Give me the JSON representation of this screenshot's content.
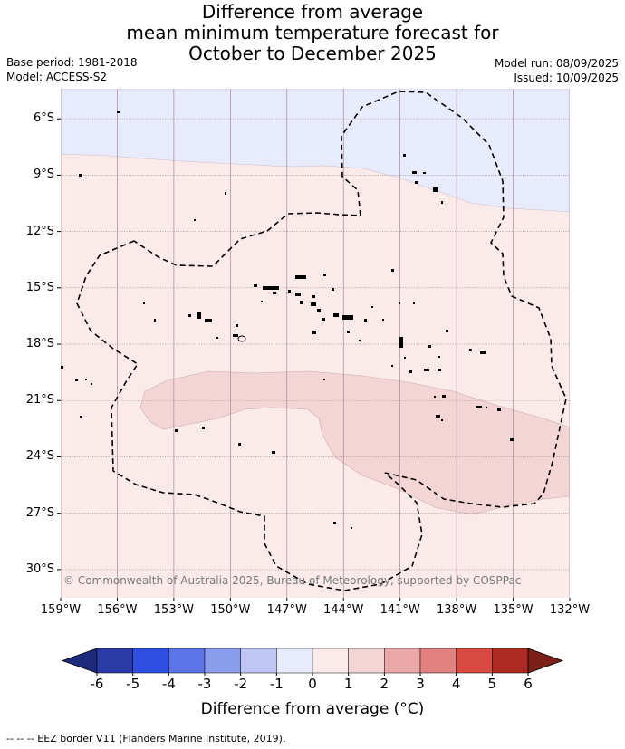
{
  "title": {
    "line1": "Difference from average",
    "line2": "mean minimum temperature forecast for",
    "line3": "October to December 2025"
  },
  "meta": {
    "base_period": "Base period: 1981-2018",
    "model": "Model: ACCESS-S2",
    "model_run": "Model run: 08/09/2025",
    "issued": "Issued: 10/09/2025"
  },
  "map": {
    "latitude_labels": [
      "6°S",
      "9°S",
      "12°S",
      "15°S",
      "18°S",
      "21°S",
      "24°S",
      "27°S",
      "30°S"
    ],
    "longitude_labels": [
      "159°W",
      "156°W",
      "153°W",
      "150°W",
      "147°W",
      "144°W",
      "141°W",
      "138°W",
      "135°W",
      "132°W"
    ],
    "extent": {
      "lon_west": -159,
      "lon_east": -132,
      "lat_north": -4.4,
      "lat_south": -31.5
    },
    "copyright": "© Commonwealth of Australia 2025, Bureau of Meteorology, supported by COSPPac",
    "regions": [
      {
        "name": "cool-band-north",
        "class": "-1 to 0",
        "color": "#e8ebfb"
      },
      {
        "name": "warm-band",
        "class": "0 to 1",
        "color": "#fbeaea"
      },
      {
        "name": "warmer-patch",
        "class": "1 to 2",
        "color": "#f4d5d5"
      }
    ]
  },
  "colorbar": {
    "title": "Difference from average (°C)",
    "ticks": [
      "-6",
      "-5",
      "-4",
      "-3",
      "-2",
      "-1",
      "0",
      "1",
      "2",
      "3",
      "4",
      "5",
      "6"
    ],
    "colors": [
      "#2a3aa6",
      "#2f4fe0",
      "#5b74e6",
      "#8a9cec",
      "#bfc6f3",
      "#e8ebfb",
      "#fbeaea",
      "#f4d5d5",
      "#eba8a8",
      "#e38181",
      "#d94a42",
      "#ad2a22"
    ],
    "under_color": "#1b2a7c",
    "over_color": "#7c1f19"
  },
  "footer": "-- -- -- EEZ border V11 (Flanders Marine Institute, 2019)."
}
